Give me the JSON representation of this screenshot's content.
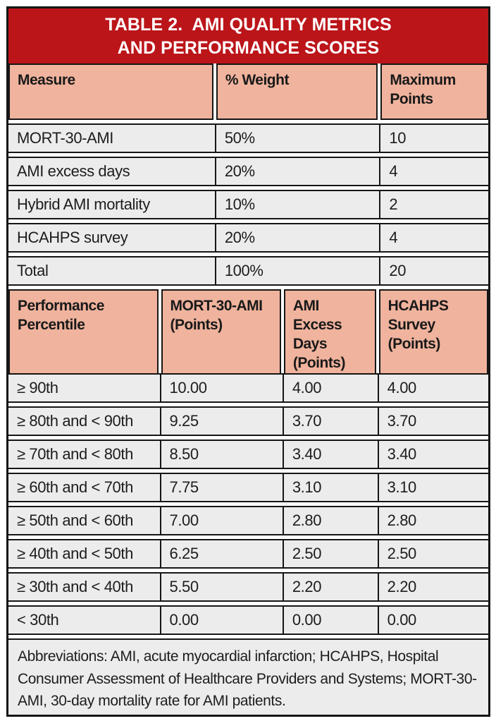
{
  "title": {
    "line1": "TABLE 2.  AMI QUALITY METRICS",
    "line2": "AND PERFORMANCE SCORES"
  },
  "weights_table": {
    "headers": [
      "Measure",
      "% Weight",
      "Maximum Points"
    ],
    "rows": [
      [
        "MORT-30-AMI",
        "50%",
        "10"
      ],
      [
        "AMI excess days",
        "20%",
        "4"
      ],
      [
        "Hybrid AMI mortality",
        "10%",
        "2"
      ],
      [
        "HCAHPS survey",
        "20%",
        "4"
      ],
      [
        "Total",
        "100%",
        "20"
      ]
    ]
  },
  "points_table": {
    "headers": [
      "Performance Percentile",
      "MORT-30-AMI (Points)",
      "AMI Excess Days (Points)",
      "HCAHPS Survey (Points)"
    ],
    "rows": [
      [
        "≥ 90th",
        "10.00",
        "4.00",
        "4.00"
      ],
      [
        "≥ 80th and < 90th",
        "9.25",
        "3.70",
        "3.70"
      ],
      [
        "≥ 70th and < 80th",
        "8.50",
        "3.40",
        "3.40"
      ],
      [
        "≥ 60th and < 70th",
        "7.75",
        "3.10",
        "3.10"
      ],
      [
        "≥ 50th and < 60th",
        "7.00",
        "2.80",
        "2.80"
      ],
      [
        "≥ 40th and < 50th",
        "6.25",
        "2.50",
        "2.50"
      ],
      [
        "≥ 30th and < 40th",
        "5.50",
        "2.20",
        "2.20"
      ],
      [
        "< 30th",
        "0.00",
        "0.00",
        "0.00"
      ]
    ]
  },
  "footnote": "Abbreviations: AMI, acute myocardial infarction; HCAHPS, Hospital Consumer Assessment of Healthcare Providers and Systems; MORT-30-AMI, 30-day mortality rate for AMI patients.",
  "colors": {
    "title_red": "#bb151a",
    "header_salmon": "#f0b39d",
    "cell_gray": "#ececec",
    "rule_black": "#161616"
  }
}
